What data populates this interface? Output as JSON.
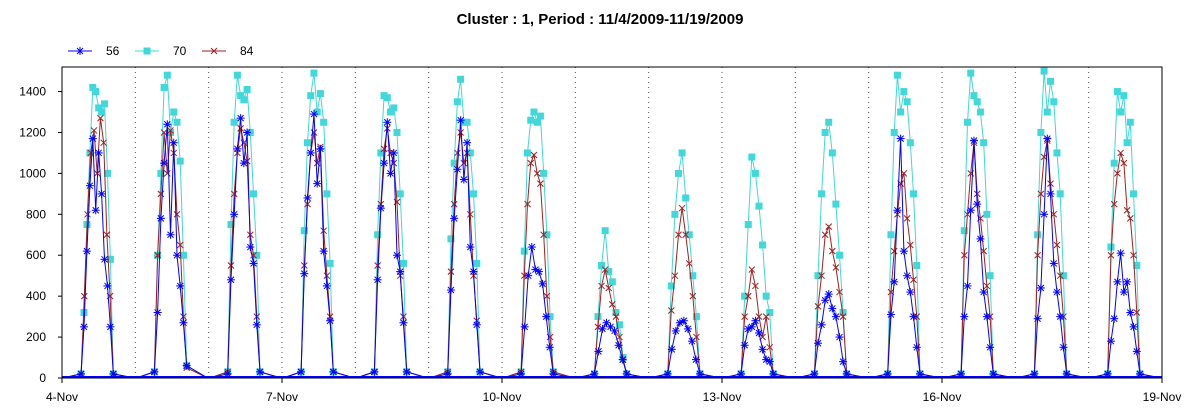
{
  "chart_data": {
    "type": "line",
    "title": "Cluster : 1, Period : 11/4/2009-11/19/2009",
    "xlabel": "",
    "ylabel": "",
    "ylim": [
      0,
      1520
    ],
    "yticks": [
      0,
      200,
      400,
      600,
      800,
      1000,
      1200,
      1400
    ],
    "xlim": [
      "2009-11-04",
      "2009-11-19"
    ],
    "xticks": [
      {
        "date": "2009-11-04",
        "label": "4-Nov"
      },
      {
        "date": "2009-11-07",
        "label": "7-Nov"
      },
      {
        "date": "2009-11-10",
        "label": "10-Nov"
      },
      {
        "date": "2009-11-13",
        "label": "13-Nov"
      },
      {
        "date": "2009-11-16",
        "label": "16-Nov"
      },
      {
        "date": "2009-11-19",
        "label": "19-Nov"
      }
    ],
    "grid": "vertical dotted at day boundaries",
    "legend": "top-left",
    "series": [
      {
        "name": "56",
        "color": "#0000ff",
        "marker": "asterisk",
        "daily_peaks": [
          1170,
          1240,
          1270,
          1290,
          1250,
          1260,
          640,
          270,
          280,
          280,
          410,
          1170,
          1160,
          1170,
          610
        ],
        "daily_values": [
          [
            20,
            250,
            620,
            940,
            1170,
            820,
            1100,
            900,
            580,
            450,
            250,
            20
          ],
          [
            30,
            320,
            780,
            1050,
            1240,
            700,
            1150,
            600,
            450,
            270,
            60
          ],
          [
            20,
            480,
            800,
            1120,
            1270,
            1050,
            1200,
            640,
            560,
            260,
            30
          ],
          [
            30,
            510,
            880,
            1100,
            1290,
            950,
            1120,
            620,
            450,
            280,
            30
          ],
          [
            30,
            480,
            830,
            1050,
            1250,
            1000,
            1100,
            600,
            520,
            270,
            30
          ],
          [
            20,
            430,
            780,
            1020,
            1260,
            970,
            1150,
            640,
            520,
            260,
            30
          ],
          [
            20,
            250,
            500,
            640,
            530,
            520,
            460,
            300,
            150,
            20
          ],
          [
            20,
            130,
            240,
            270,
            250,
            230,
            160,
            90,
            20
          ],
          [
            20,
            140,
            230,
            270,
            280,
            240,
            180,
            90,
            20
          ],
          [
            20,
            160,
            240,
            250,
            280,
            220,
            140,
            90,
            80,
            20
          ],
          [
            20,
            170,
            260,
            380,
            410,
            340,
            300,
            200,
            80,
            20
          ],
          [
            20,
            310,
            470,
            820,
            1170,
            620,
            500,
            420,
            300,
            150,
            20
          ],
          [
            20,
            300,
            450,
            820,
            1160,
            850,
            680,
            420,
            300,
            150,
            20
          ],
          [
            20,
            290,
            440,
            800,
            1170,
            900,
            560,
            420,
            300,
            150,
            20
          ],
          [
            20,
            180,
            290,
            470,
            610,
            420,
            470,
            320,
            250,
            130,
            20
          ]
        ]
      },
      {
        "name": "70",
        "color": "#40d8d8",
        "marker": "square",
        "daily_peaks": [
          1420,
          1480,
          1480,
          1490,
          1380,
          1460,
          1300,
          720,
          1100,
          1080,
          1250,
          1480,
          1490,
          1500,
          1400
        ],
        "daily_values": [
          [
            20,
            320,
            750,
            1100,
            1420,
            1400,
            1320,
            1300,
            1340,
            1000,
            580,
            20
          ],
          [
            30,
            600,
            1000,
            1420,
            1480,
            1200,
            1300,
            1250,
            1060,
            600,
            60
          ],
          [
            30,
            750,
            1250,
            1480,
            1380,
            1360,
            1410,
            1200,
            900,
            600,
            30
          ],
          [
            30,
            720,
            1150,
            1380,
            1490,
            1300,
            1390,
            1250,
            900,
            560,
            30
          ],
          [
            30,
            700,
            1100,
            1380,
            1370,
            1300,
            1320,
            1200,
            900,
            560,
            30
          ],
          [
            30,
            680,
            1050,
            1350,
            1460,
            1250,
            1250,
            1100,
            900,
            560,
            30
          ],
          [
            30,
            620,
            1100,
            1260,
            1300,
            1250,
            1280,
            1000,
            700,
            300,
            30
          ],
          [
            20,
            300,
            550,
            720,
            520,
            470,
            320,
            260,
            100,
            20
          ],
          [
            20,
            450,
            800,
            1000,
            1100,
            880,
            700,
            500,
            300,
            20
          ],
          [
            20,
            400,
            750,
            1080,
            1000,
            840,
            650,
            400,
            320,
            20
          ],
          [
            20,
            500,
            900,
            1200,
            1250,
            1100,
            850,
            600,
            320,
            20
          ],
          [
            20,
            700,
            1200,
            1480,
            1300,
            1400,
            1350,
            1150,
            900,
            550,
            20
          ],
          [
            20,
            720,
            1250,
            1490,
            1380,
            1350,
            1300,
            1150,
            800,
            500,
            20
          ],
          [
            20,
            700,
            1200,
            1500,
            1300,
            1450,
            1350,
            1100,
            900,
            500,
            20
          ],
          [
            20,
            640,
            1050,
            1400,
            1300,
            1380,
            1150,
            1250,
            900,
            550,
            20
          ]
        ]
      },
      {
        "name": "84",
        "color": "#a02020",
        "marker": "x",
        "daily_peaks": [
          1270,
          1210,
          1220,
          1200,
          1220,
          1200,
          1090,
          530,
          830,
          530,
          740,
          1000,
          1150,
          1160,
          1100
        ],
        "daily_values": [
          [
            20,
            400,
            800,
            1100,
            1210,
            1000,
            1270,
            1150,
            700,
            400,
            20
          ],
          [
            30,
            600,
            900,
            1200,
            1000,
            1210,
            1100,
            800,
            650,
            300,
            50
          ],
          [
            30,
            550,
            900,
            1100,
            1220,
            1150,
            1060,
            700,
            600,
            300,
            30
          ],
          [
            30,
            550,
            850,
            1100,
            1200,
            1050,
            1130,
            720,
            500,
            300,
            30
          ],
          [
            30,
            550,
            850,
            1120,
            1220,
            1100,
            1050,
            860,
            500,
            300,
            30
          ],
          [
            30,
            520,
            850,
            1100,
            1200,
            1050,
            1100,
            800,
            500,
            280,
            30
          ],
          [
            30,
            500,
            850,
            1050,
            1090,
            1000,
            950,
            700,
            400,
            200,
            30
          ],
          [
            20,
            250,
            450,
            530,
            440,
            360,
            300,
            200,
            90,
            20
          ],
          [
            20,
            330,
            500,
            700,
            830,
            700,
            560,
            400,
            200,
            20
          ],
          [
            20,
            300,
            400,
            530,
            450,
            300,
            200,
            300,
            150,
            20
          ],
          [
            20,
            350,
            500,
            700,
            740,
            620,
            540,
            420,
            300,
            20
          ],
          [
            20,
            420,
            620,
            800,
            950,
            1000,
            780,
            650,
            480,
            300,
            20
          ],
          [
            20,
            600,
            800,
            1000,
            1150,
            900,
            780,
            620,
            450,
            300,
            20
          ],
          [
            20,
            600,
            900,
            1080,
            1160,
            950,
            800,
            650,
            500,
            300,
            20
          ],
          [
            20,
            600,
            850,
            1000,
            1100,
            1050,
            820,
            780,
            600,
            320,
            20
          ]
        ]
      }
    ]
  }
}
